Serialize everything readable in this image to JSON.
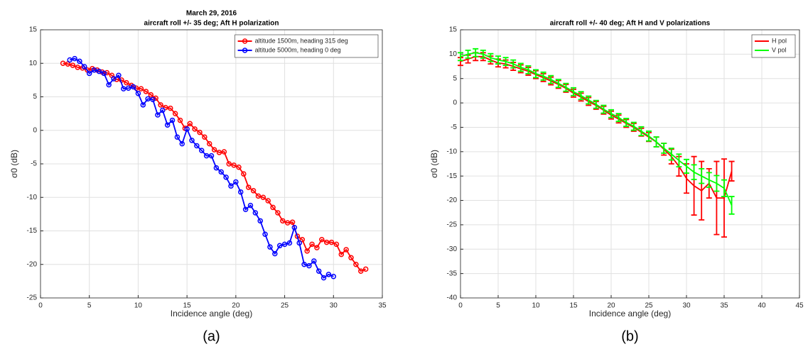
{
  "chart_data": [
    {
      "type": "line",
      "title": "March 29, 2016",
      "subtitle": "aircraft roll +/- 35 deg; Aft H polarization",
      "xlabel": "Incidence angle (deg)",
      "ylabel": "σ0 (dB)",
      "panel_label": "(a)",
      "xlim": [
        0,
        35
      ],
      "xticks": [
        0,
        5,
        10,
        15,
        20,
        25,
        30,
        35
      ],
      "ylim": [
        -25,
        15
      ],
      "yticks": [
        -25,
        -20,
        -15,
        -10,
        -5,
        0,
        5,
        10,
        15
      ],
      "grid": true,
      "legend": "upper right",
      "marker": "circle",
      "series": [
        {
          "name": "altitude 1500m, heading 315 deg",
          "color": "#ff0000",
          "x": [
            2.3,
            2.8,
            3.3,
            3.8,
            4.3,
            4.8,
            5.3,
            5.8,
            6.3,
            6.8,
            7.3,
            7.8,
            8.3,
            8.8,
            9.3,
            9.8,
            10.3,
            10.8,
            11.3,
            11.8,
            12.3,
            12.8,
            13.3,
            13.8,
            14.3,
            14.8,
            15.3,
            15.8,
            16.3,
            16.8,
            17.3,
            17.8,
            18.3,
            18.8,
            19.3,
            19.8,
            20.3,
            20.8,
            21.3,
            21.8,
            22.3,
            22.8,
            23.3,
            23.8,
            24.3,
            24.8,
            25.3,
            25.8,
            26.3,
            26.8,
            27.3,
            27.8,
            28.3,
            28.8,
            29.3,
            29.8,
            30.3,
            30.8,
            31.3,
            31.8,
            32.3,
            32.8,
            33.3
          ],
          "values": [
            10,
            9.9,
            9.7,
            9.4,
            9.3,
            9.0,
            9.2,
            9.0,
            8.7,
            8.6,
            8.2,
            7.6,
            7.5,
            7.1,
            6.7,
            6.3,
            6.2,
            5.8,
            5.3,
            4.8,
            3.8,
            3.4,
            3.3,
            2.5,
            1.5,
            0.3,
            1.0,
            0.2,
            -0.3,
            -1.0,
            -2.0,
            -2.9,
            -3.3,
            -3.2,
            -5.0,
            -5.2,
            -5.5,
            -6.5,
            -8.5,
            -9.0,
            -9.8,
            -10.0,
            -10.5,
            -11.5,
            -12.3,
            -13.5,
            -13.8,
            -13.7,
            -15.8,
            -16.3,
            -18.0,
            -17.0,
            -17.5,
            -16.3,
            -16.7,
            -16.7,
            -17.0,
            -18.5,
            -17.8,
            -19.0,
            -20.0,
            -21.0,
            -20.7
          ]
        },
        {
          "name": "altitude 5000m, heading 0 deg",
          "color": "#0000ff",
          "x": [
            3.0,
            3.5,
            4.0,
            4.5,
            5.0,
            5.5,
            6.0,
            6.5,
            7.0,
            7.5,
            8.0,
            8.5,
            9.0,
            9.5,
            10.0,
            10.5,
            11.0,
            11.5,
            12.0,
            12.5,
            13.0,
            13.5,
            14.0,
            14.5,
            15.0,
            15.5,
            16.0,
            16.5,
            17.0,
            17.5,
            18.0,
            18.5,
            19.0,
            19.5,
            20.0,
            20.5,
            21.0,
            21.5,
            22.0,
            22.5,
            23.0,
            23.5,
            24.0,
            24.5,
            25.0,
            25.5,
            26.0,
            26.5,
            27.0,
            27.5,
            28.0,
            28.5,
            29.0,
            29.5,
            30.0
          ],
          "values": [
            10.5,
            10.7,
            10.3,
            9.5,
            8.5,
            9.0,
            8.8,
            8.5,
            6.8,
            7.7,
            8.2,
            6.2,
            6.3,
            6.5,
            5.5,
            3.8,
            4.7,
            4.6,
            2.3,
            3.0,
            0.8,
            1.5,
            -1.0,
            -2.0,
            0.2,
            -1.5,
            -2.3,
            -3.0,
            -3.8,
            -3.8,
            -5.6,
            -6.2,
            -7.0,
            -8.3,
            -7.7,
            -9.2,
            -11.8,
            -11.2,
            -12.3,
            -13.5,
            -15.5,
            -17.4,
            -18.4,
            -17.2,
            -17.0,
            -16.8,
            -14.5,
            -16.8,
            -20.0,
            -20.2,
            -19.5,
            -21.0,
            -22.0,
            -21.5,
            -21.8
          ]
        }
      ]
    },
    {
      "type": "errorbar",
      "title": "aircraft roll +/- 40 deg; Aft H and V polarizations",
      "xlabel": "Incidence angle (deg)",
      "ylabel": "σ0 (dB)",
      "panel_label": "(b)",
      "xlim": [
        0,
        45
      ],
      "xticks": [
        0,
        5,
        10,
        15,
        20,
        25,
        30,
        35,
        40,
        45
      ],
      "ylim": [
        -40,
        15
      ],
      "yticks": [
        -40,
        -35,
        -30,
        -25,
        -20,
        -15,
        -10,
        -5,
        0,
        5,
        10,
        15
      ],
      "grid": true,
      "legend": "upper right",
      "x": [
        0,
        1,
        2,
        3,
        4,
        5,
        6,
        7,
        8,
        9,
        10,
        11,
        12,
        13,
        14,
        15,
        16,
        17,
        18,
        19,
        20,
        21,
        22,
        23,
        24,
        25,
        26,
        27,
        28,
        29,
        30,
        31,
        32,
        33,
        34,
        35,
        36
      ],
      "series": [
        {
          "name": "H pol",
          "color": "#ff0000",
          "values": [
            8.5,
            9,
            9.5,
            9.5,
            8.8,
            8.2,
            8.0,
            7.5,
            7,
            6.5,
            5.8,
            5.2,
            4.5,
            3.8,
            3,
            2,
            1.2,
            0.3,
            -0.5,
            -1.5,
            -2.5,
            -3.3,
            -4.2,
            -5,
            -6,
            -7,
            -8,
            -9.5,
            -11,
            -13,
            -15.5,
            -17,
            -18,
            -16.5,
            -19.5,
            -19.5,
            -14
          ],
          "errors": [
            0.8,
            0.8,
            0.8,
            0.8,
            0.8,
            0.8,
            0.8,
            0.8,
            0.8,
            0.8,
            0.8,
            0.8,
            0.8,
            0.8,
            0.8,
            0.8,
            0.8,
            0.8,
            0.8,
            0.8,
            0.8,
            0.8,
            0.8,
            0.8,
            0.8,
            0.9,
            1,
            1.2,
            1.5,
            2,
            3,
            6,
            6,
            3,
            7.5,
            8,
            2
          ]
        },
        {
          "name": "V pol",
          "color": "#00ff00",
          "values": [
            9.5,
            10,
            10.3,
            10,
            9.3,
            8.8,
            8.5,
            8,
            7.3,
            6.8,
            6,
            5.5,
            4.8,
            4,
            3.2,
            2.3,
            1.5,
            0.6,
            -0.3,
            -1.3,
            -2.2,
            -3,
            -4,
            -4.8,
            -5.8,
            -6.8,
            -8,
            -9.3,
            -10.5,
            -11.8,
            -13,
            -14.2,
            -15,
            -15.8,
            -16.5,
            -17.5,
            -21
          ],
          "errors": [
            0.8,
            0.8,
            0.8,
            0.8,
            0.8,
            0.8,
            0.8,
            0.8,
            0.8,
            0.8,
            0.8,
            0.8,
            0.8,
            0.8,
            0.8,
            0.8,
            0.8,
            0.8,
            0.8,
            0.8,
            0.8,
            0.8,
            0.8,
            0.8,
            0.9,
            1,
            1,
            1,
            1.2,
            1.3,
            1.4,
            1.5,
            1.5,
            1.5,
            1.6,
            1.7,
            1.8
          ]
        }
      ]
    }
  ]
}
